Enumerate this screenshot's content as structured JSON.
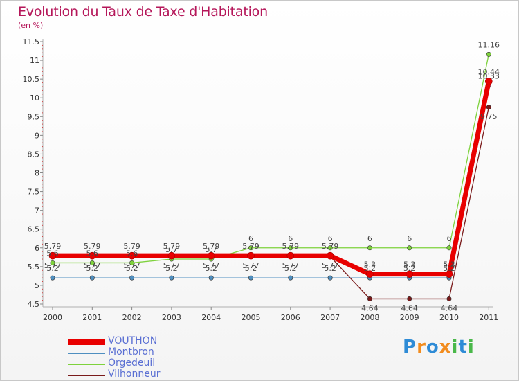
{
  "title": "Evolution du Taux de Taxe d'Habitation",
  "subtitle": "(en %)",
  "logo": {
    "letters": [
      {
        "char": "P",
        "color": "#2e8bd6"
      },
      {
        "char": "r",
        "color": "#f28c1e"
      },
      {
        "char": "o",
        "color": "#2e8bd6"
      },
      {
        "char": "x",
        "color": "#f28c1e"
      },
      {
        "char": "i",
        "color": "#4ab84a"
      },
      {
        "char": "t",
        "color": "#2e8bd6"
      },
      {
        "char": "i",
        "color": "#4ab84a"
      }
    ]
  },
  "chart_data": {
    "type": "line",
    "x": [
      "2000",
      "2001",
      "2002",
      "2003",
      "2004",
      "2005",
      "2006",
      "2007",
      "2008",
      "2009",
      "2010",
      "2011"
    ],
    "yticks": [
      "4.5",
      "5",
      "5.5",
      "6",
      "6.5",
      "7",
      "7.5",
      "8",
      "8.5",
      "9",
      "9.5",
      "10",
      "10.5",
      "11",
      "11.5"
    ],
    "ylim": [
      4.5,
      11.5
    ],
    "grid": false,
    "legend_position": "bottom-left",
    "series": [
      {
        "name": "VOUTHON",
        "color": "#e80000",
        "values": [
          5.79,
          5.79,
          5.79,
          5.79,
          5.79,
          5.79,
          5.79,
          5.79,
          5.3,
          5.3,
          5.3,
          10.44
        ],
        "labels": [
          "5.79",
          "5.79",
          "5.79",
          "5.79",
          "5.79",
          "5.79",
          "5.79",
          "5.79",
          "5.3",
          "5.3",
          "5.3",
          "10.44"
        ]
      },
      {
        "name": "Montbron",
        "color": "#4f8fc0",
        "values": [
          5.2,
          5.2,
          5.2,
          5.2,
          5.2,
          5.2,
          5.2,
          5.2,
          5.2,
          5.2,
          5.2,
          10.33
        ],
        "labels": [
          "5.2",
          "5.2",
          "5.2",
          "5.2",
          "5.2",
          "5.2",
          "5.2",
          "5.2",
          "5.2",
          "5.2",
          "5.2",
          "10.33"
        ]
      },
      {
        "name": "Orgedeuil",
        "color": "#7ed23c",
        "values": [
          5.6,
          5.6,
          5.6,
          5.7,
          5.7,
          6,
          6,
          6,
          6,
          6,
          6,
          11.16
        ],
        "labels": [
          "5.6",
          "5.6",
          "5.6",
          "5.7",
          "5.7",
          "6",
          "6",
          "6",
          "6",
          "6",
          "6",
          "11.16"
        ]
      },
      {
        "name": "Vilhonneur",
        "color": "#7a1a1a",
        "values": [
          5.77,
          5.77,
          5.77,
          5.77,
          5.77,
          5.77,
          5.77,
          5.77,
          4.64,
          4.64,
          4.64,
          9.75
        ],
        "labels": [
          "5.77",
          "5.77",
          "5.77",
          "5.77",
          "5.77",
          "5.77",
          "5.77",
          "5.77",
          "4.64",
          "4.64",
          "4.64",
          "9.75"
        ]
      }
    ]
  }
}
